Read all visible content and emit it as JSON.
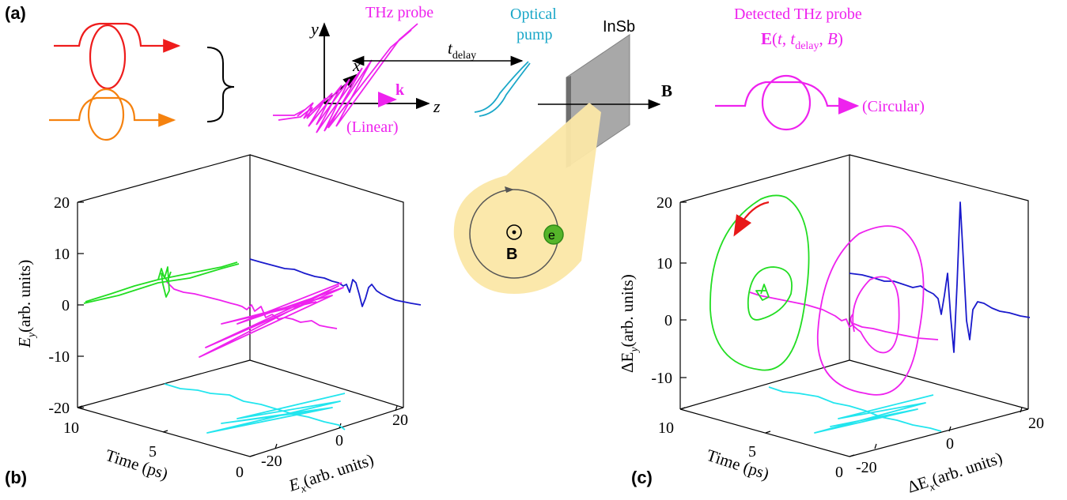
{
  "panel_labels": {
    "a": "(a)",
    "b": "(b)",
    "c": "(c)"
  },
  "top": {
    "thz_probe": "THz probe",
    "optical_pump_line1": "Optical",
    "optical_pump_line2": "pump",
    "t_delay_main": "t",
    "t_delay_sub": "delay",
    "axis_y": "y",
    "axis_x": "x",
    "axis_z": "z",
    "k_label": "k",
    "linear_label": "(Linear)",
    "sample": "InSb",
    "B_label": "B",
    "detected_label": "Detected THz probe",
    "field_expr_E": "E",
    "field_expr_t": "t",
    "field_expr_tdelay_main": "t",
    "field_expr_tdelay_sub": "delay",
    "field_expr_B": "B",
    "circular_label": "(Circular)",
    "inset_B": "B",
    "inset_electron": "e"
  },
  "colors": {
    "red": "#ee1c1c",
    "orange": "#f5820f",
    "magenta": "#ee22ee",
    "cyan_pump": "#1aa7c8",
    "green": "#22dd22",
    "blue": "#1a1acc",
    "cyan": "#22e5ee",
    "inset_yellow": "#fbe7a6"
  },
  "chart_data": [
    {
      "type": "line",
      "panel": "(b)",
      "zlabel_main": "E",
      "zlabel_sub": "y",
      "zlabel_units": "(arb. units)",
      "xlabel_main": "E",
      "xlabel_sub": "x",
      "xlabel_units": "(arb. units)",
      "tlabel": "Time (ps)",
      "z_ticks": [
        "20",
        "10",
        "0",
        "-10",
        "-20"
      ],
      "x_ticks": [
        "-20",
        "0",
        "20"
      ],
      "t_ticks": [
        "10",
        "5",
        "0"
      ],
      "series": [
        {
          "name": "",
          "color": "magenta"
        },
        {
          "name": "",
          "color": "green"
        },
        {
          "name": "",
          "color": "blue"
        },
        {
          "name": "",
          "color": "cyan"
        }
      ]
    },
    {
      "type": "line",
      "panel": "(c)",
      "zlabel_main": "ΔE",
      "zlabel_sub": "y",
      "zlabel_units": "(arb. units)",
      "xlabel_main": "ΔE",
      "xlabel_sub": "x",
      "xlabel_units": "(arb. units)",
      "tlabel": "Time (ps)",
      "z_ticks": [
        "20",
        "10",
        "0",
        "-10"
      ],
      "x_ticks": [
        "-20",
        "0",
        "20"
      ],
      "t_ticks": [
        "10",
        "5",
        "0"
      ],
      "series": [
        {
          "name": "",
          "color": "magenta"
        },
        {
          "name": "",
          "color": "green"
        },
        {
          "name": "",
          "color": "blue"
        },
        {
          "name": "",
          "color": "cyan"
        }
      ]
    }
  ]
}
